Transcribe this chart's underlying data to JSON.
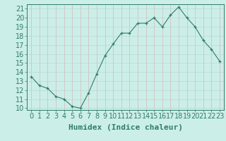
{
  "x": [
    0,
    1,
    2,
    3,
    4,
    5,
    6,
    7,
    8,
    9,
    10,
    11,
    12,
    13,
    14,
    15,
    16,
    17,
    18,
    19,
    20,
    21,
    22,
    23
  ],
  "y": [
    13.5,
    12.5,
    12.2,
    11.3,
    11.0,
    10.2,
    10.0,
    11.7,
    13.8,
    15.8,
    17.1,
    18.3,
    18.3,
    19.4,
    19.4,
    20.0,
    19.0,
    20.3,
    21.2,
    20.0,
    19.0,
    17.5,
    16.5,
    15.2
  ],
  "line_color": "#2e7d6b",
  "marker": "+",
  "bg_color": "#cceee8",
  "grid_color_v": "#d4b8b8",
  "grid_color_h": "#b8d8d4",
  "xlabel": "Humidex (Indice chaleur)",
  "ylabel_ticks": [
    10,
    11,
    12,
    13,
    14,
    15,
    16,
    17,
    18,
    19,
    20,
    21
  ],
  "xlim": [
    -0.5,
    23.5
  ],
  "ylim": [
    9.8,
    21.5
  ],
  "xlabel_fontsize": 8,
  "tick_fontsize": 7,
  "xlabel_color": "#2e7d6b",
  "xlabel_bold": true
}
